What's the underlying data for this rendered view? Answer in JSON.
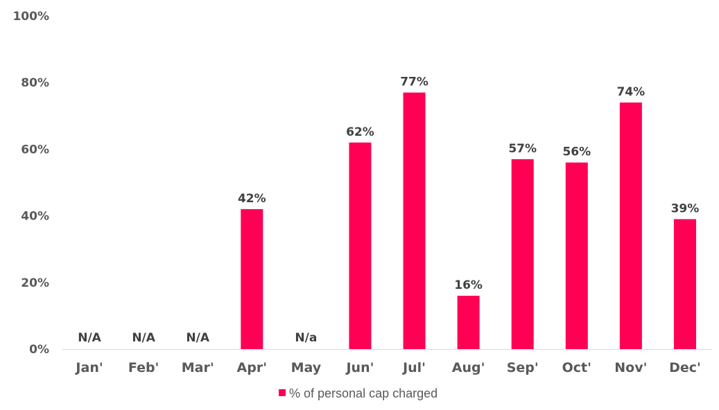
{
  "chart_data": {
    "type": "bar",
    "categories": [
      "Jan'",
      "Feb'",
      "Mar'",
      "Apr'",
      "May",
      "Jun'",
      "Jul'",
      "Aug'",
      "Sep'",
      "Oct'",
      "Nov'",
      "Dec'"
    ],
    "series": [
      {
        "name": "% of personal cap charged",
        "values": [
          null,
          null,
          null,
          42,
          null,
          62,
          77,
          16,
          57,
          56,
          74,
          39
        ],
        "data_labels": [
          "N/A",
          "N/A",
          "N/A",
          "42%",
          "N/a",
          "62%",
          "77%",
          "16%",
          "57%",
          "56%",
          "74%",
          "39%"
        ],
        "color": "#FF0055"
      }
    ],
    "ylim": [
      0,
      100
    ],
    "yticks": [
      0,
      20,
      40,
      60,
      80,
      100
    ],
    "ytick_labels": [
      "0%",
      "20%",
      "40%",
      "60%",
      "80%",
      "100%"
    ],
    "grid": false,
    "legend_position": "bottom-center",
    "title": "",
    "xlabel": "",
    "ylabel": ""
  }
}
